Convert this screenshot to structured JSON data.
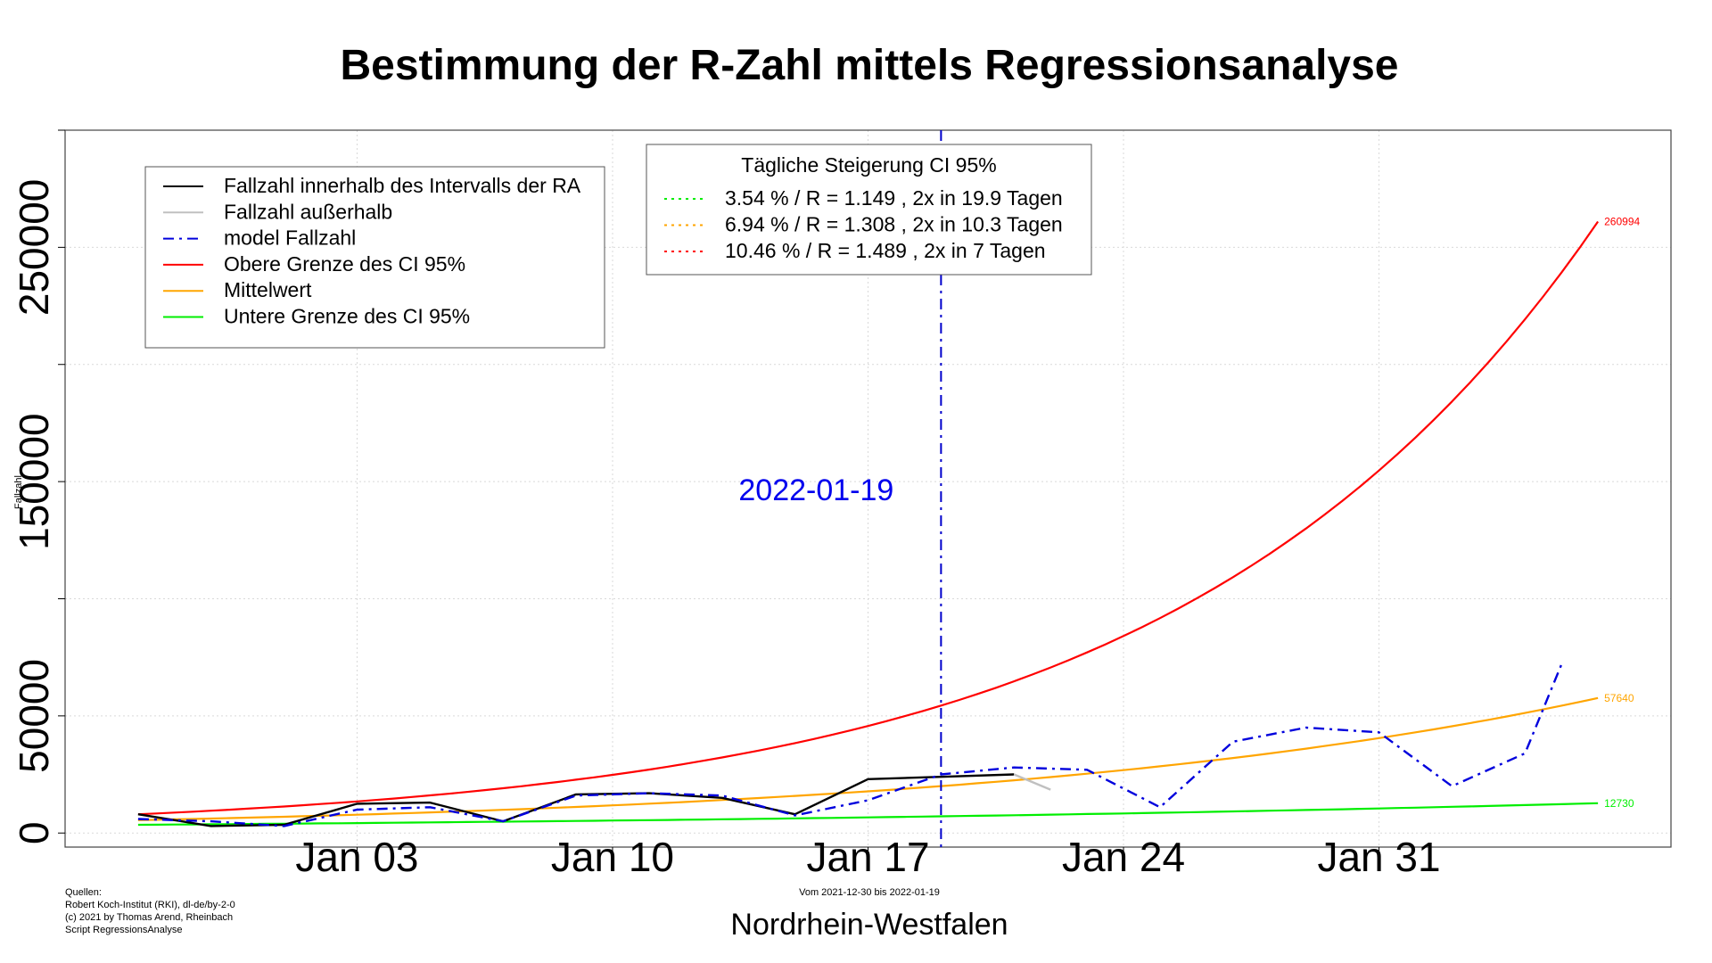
{
  "chart_data": {
    "type": "line",
    "title": "Bestimmung der R-Zahl mittels Regressionsanalyse",
    "region": "Nordrhein-Westfalen",
    "period_note": "Vom 2021-12-30 bis 2022-01-19",
    "ylabel": "Fallzahl",
    "ylim": [
      -6000,
      300000
    ],
    "xlim": [
      "2021-12-26",
      "2022-02-08"
    ],
    "x_ticks": [
      {
        "date": "2022-01-03",
        "label": "Jan 03"
      },
      {
        "date": "2022-01-10",
        "label": "Jan 10"
      },
      {
        "date": "2022-01-17",
        "label": "Jan 17"
      },
      {
        "date": "2022-01-24",
        "label": "Jan 24"
      },
      {
        "date": "2022-01-31",
        "label": "Jan 31"
      }
    ],
    "y_ticks": [
      {
        "value": 0,
        "label": "0"
      },
      {
        "value": 50000,
        "label": "50000"
      },
      {
        "value": 150000,
        "label": "150000"
      },
      {
        "value": 250000,
        "label": "250000"
      }
    ],
    "grid": true,
    "vline": {
      "date": "2022-01-19",
      "label": "2022-01-19",
      "color": "#0000cc"
    },
    "legend": {
      "placement": "top-left",
      "entries": [
        {
          "label": "Fallzahl innerhalb des Intervalls der RA",
          "color": "#000000",
          "style": "solid"
        },
        {
          "label": "Fallzahl außerhalb",
          "color": "#c0c0c0",
          "style": "solid"
        },
        {
          "label": "model Fallzahl",
          "color": "#0000dd",
          "style": "dotdash"
        },
        {
          "label": "Obere Grenze des CI 95%",
          "color": "#ff0000",
          "style": "solid"
        },
        {
          "label": "Mittelwert",
          "color": "#ffa500",
          "style": "solid"
        },
        {
          "label": "Untere Grenze des CI 95%",
          "color": "#00ee00",
          "style": "solid"
        }
      ]
    },
    "legend2": {
      "placement": "top-center",
      "title": "Tägliche Steigerung CI  95%",
      "entries": [
        {
          "label": "3.54 % / R = 1.149 , 2x in 19.9 Tagen",
          "color": "#00ee00",
          "style": "dotted"
        },
        {
          "label": "6.94 % / R = 1.308 , 2x in 10.3 Tagen",
          "color": "#ffa500",
          "style": "dotted"
        },
        {
          "label": "10.46 % / R = 1.489 , 2x in 7 Tagen",
          "color": "#ff0000",
          "style": "dotted"
        }
      ]
    },
    "series": [
      {
        "name": "Obere Grenze des CI 95%",
        "color": "#ff0000",
        "kind": "exp",
        "start_date": "2021-12-28",
        "end_date": "2022-02-06",
        "start_value": 8000,
        "end_value": 260994,
        "end_label": "260994"
      },
      {
        "name": "Mittelwert",
        "color": "#ffa500",
        "kind": "exp",
        "start_date": "2021-12-28",
        "end_date": "2022-02-06",
        "start_value": 5500,
        "end_value": 57640,
        "end_label": "57640"
      },
      {
        "name": "Untere Grenze des CI 95%",
        "color": "#00ee00",
        "kind": "exp",
        "start_date": "2021-12-28",
        "end_date": "2022-02-06",
        "start_value": 3500,
        "end_value": 12730,
        "end_label": "12730"
      },
      {
        "name": "Fallzahl innerhalb des Intervalls der RA",
        "color": "#000000",
        "kind": "points",
        "x": [
          "2021-12-28",
          "2021-12-30",
          "2022-01-01",
          "2022-01-03",
          "2022-01-05",
          "2022-01-07",
          "2022-01-09",
          "2022-01-11",
          "2022-01-13",
          "2022-01-15",
          "2022-01-17",
          "2022-01-19",
          "2022-01-21"
        ],
        "values": [
          8000,
          3000,
          3500,
          12500,
          13000,
          5000,
          16500,
          17000,
          15000,
          8000,
          23000,
          24000,
          25000
        ]
      },
      {
        "name": "Fallzahl außerhalb",
        "color": "#c0c0c0",
        "kind": "points",
        "x": [
          "2022-01-21",
          "2022-01-22"
        ],
        "values": [
          25000,
          18500
        ]
      },
      {
        "name": "model Fallzahl",
        "color": "#0000dd",
        "kind": "points",
        "x": [
          "2021-12-28",
          "2021-12-30",
          "2022-01-01",
          "2022-01-03",
          "2022-01-05",
          "2022-01-07",
          "2022-01-09",
          "2022-01-11",
          "2022-01-13",
          "2022-01-15",
          "2022-01-17",
          "2022-01-19",
          "2022-01-21",
          "2022-01-23",
          "2022-01-25",
          "2022-01-27",
          "2022-01-29",
          "2022-01-31",
          "2022-02-02",
          "2022-02-04",
          "2022-02-05"
        ],
        "values": [
          6000,
          5000,
          3000,
          10000,
          11000,
          5000,
          16000,
          17000,
          16000,
          7500,
          14000,
          25000,
          28000,
          27000,
          11000,
          39000,
          45000,
          43000,
          20000,
          34000,
          72000
        ]
      }
    ],
    "sources": [
      "Quellen:",
      "Robert Koch-Institut (RKI), dl-de/by-2-0",
      "(c) 2021 by Thomas Arend, Rheinbach",
      "Script RegressionsAnalyse"
    ]
  }
}
